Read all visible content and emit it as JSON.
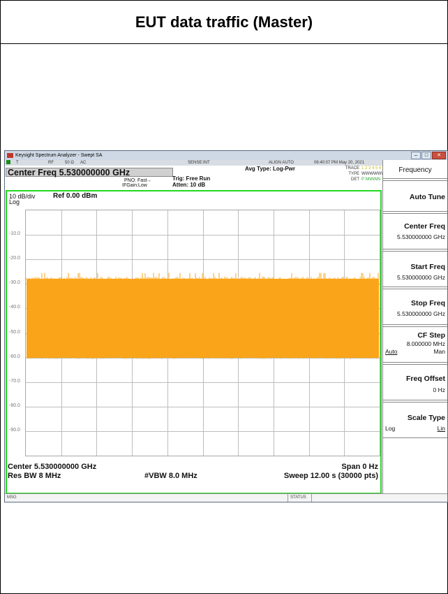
{
  "page_title": "EUT data traffic (Master)",
  "window": {
    "title": "Keysight Spectrum Analyzer - Swept SA",
    "controls": [
      "–",
      "□",
      "✕"
    ]
  },
  "status_bar": {
    "items": [
      "T",
      "RF",
      "50 Ω",
      "AC",
      "SENSE:INT",
      "ALIGN AUTO"
    ],
    "datetime": "06:40:07 PM May 20, 2021"
  },
  "header": {
    "center_freq": "Center Freq 5.530000000 GHz",
    "pno": "PNO: Fast",
    "ifgain": "IFGain:Low",
    "trig": "Trig: Free Run",
    "atten": "Atten: 10 dB",
    "avg_type": "Avg Type: Log-Pwr",
    "trace_label": "TRACE",
    "trace_values": "1 2 3 4 5 6",
    "type_label": "TYPE",
    "type_values": "WWWWWW",
    "det_label": "DET",
    "det_values": "P NNNNN"
  },
  "plot": {
    "scale": "10 dB/div",
    "log": "Log",
    "ref": "Ref 0.00 dBm",
    "y_ticks": [
      "-10.0",
      "-20.0",
      "-30.0",
      "-40.0",
      "-50.0",
      "-60.0",
      "-70.0",
      "-80.0",
      "-90.0"
    ],
    "trace_color": "#f9a419",
    "frame_color": "#22d822",
    "trace_top_dbm": -28,
    "trace_bottom_dbm": -60,
    "ref_dbm": 0,
    "db_per_div": 10,
    "divisions": 10
  },
  "footer": {
    "center": "Center 5.530000000 GHz",
    "span": "Span 0 Hz",
    "res_bw": "Res BW 8 MHz",
    "vbw": "#VBW 8.0 MHz",
    "sweep": "Sweep  12.00 s (30000 pts)"
  },
  "msg_bar": {
    "msg": "MSG",
    "status": "STATUS"
  },
  "softkeys": {
    "menu_title": "Frequency",
    "auto_tune": "Auto Tune",
    "center_freq": {
      "label": "Center Freq",
      "value": "5.530000000 GHz"
    },
    "start_freq": {
      "label": "Start Freq",
      "value": "5.530000000 GHz"
    },
    "stop_freq": {
      "label": "Stop Freq",
      "value": "5.530000000 GHz"
    },
    "cf_step": {
      "label": "CF Step",
      "value": "8.000000 MHz",
      "auto": "Auto",
      "man": "Man"
    },
    "freq_offset": {
      "label": "Freq Offset",
      "value": "0 Hz"
    },
    "scale_type": {
      "label": "Scale Type",
      "log": "Log",
      "lin": "Lin"
    }
  }
}
